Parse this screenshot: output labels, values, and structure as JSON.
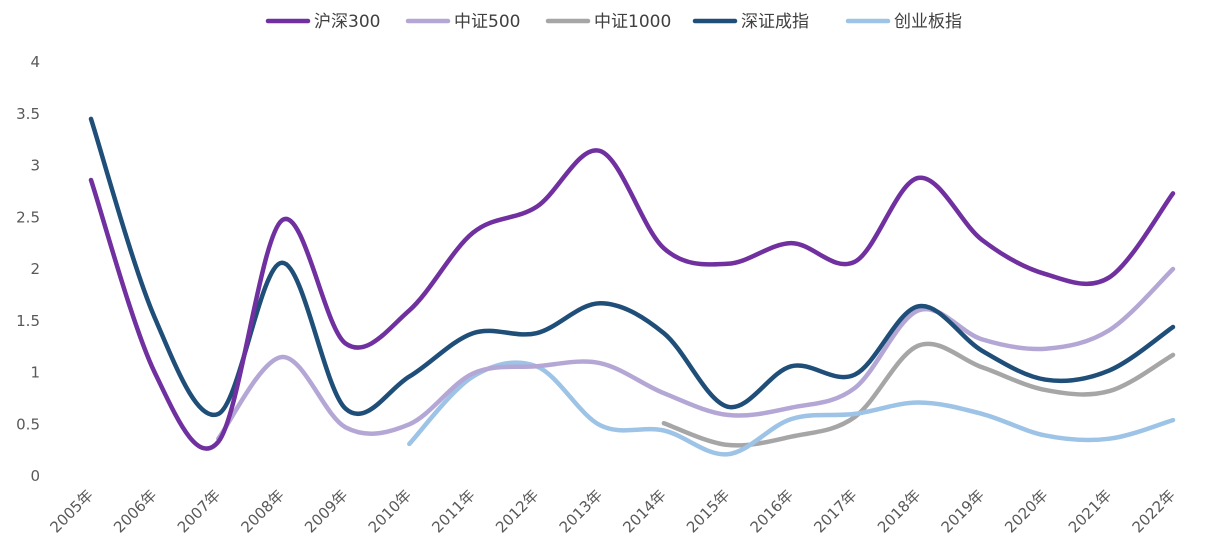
{
  "chart_data": {
    "type": "line",
    "title": "",
    "xlabel": "",
    "ylabel": "",
    "ylim": [
      0,
      4
    ],
    "yticks": [
      "0",
      "0.5",
      "1",
      "1.5",
      "2",
      "2.5",
      "3",
      "3.5",
      "4"
    ],
    "grid": false,
    "legend_position": "top",
    "categories": [
      "2005年",
      "2006年",
      "2007年",
      "2008年",
      "2009年",
      "2010年",
      "2011年",
      "2012年",
      "2013年",
      "2014年",
      "2015年",
      "2016年",
      "2017年",
      "2018年",
      "2019年",
      "2020年",
      "2021年",
      "2022年"
    ],
    "series": [
      {
        "name": "沪深300",
        "color": "#7030a0",
        "values": [
          2.86,
          1.0,
          0.33,
          2.47,
          1.28,
          1.6,
          2.35,
          2.6,
          3.14,
          2.2,
          2.05,
          2.25,
          2.07,
          2.88,
          2.28,
          1.95,
          1.92,
          2.73
        ]
      },
      {
        "name": "中证500",
        "color": "#b4a7d6",
        "values": [
          null,
          null,
          0.36,
          1.15,
          0.47,
          0.5,
          0.99,
          1.06,
          1.09,
          0.8,
          0.59,
          0.66,
          0.85,
          1.6,
          1.32,
          1.23,
          1.41,
          2.0
        ]
      },
      {
        "name": "中证1000",
        "color": "#a6a6a6",
        "values": [
          null,
          null,
          null,
          null,
          null,
          null,
          null,
          null,
          null,
          0.51,
          0.3,
          0.38,
          0.57,
          1.26,
          1.05,
          0.83,
          0.82,
          1.17
        ]
      },
      {
        "name": "深证成指",
        "color": "#1f4e79",
        "values": [
          3.45,
          1.53,
          0.6,
          2.06,
          0.65,
          0.96,
          1.38,
          1.38,
          1.67,
          1.38,
          0.67,
          1.06,
          0.98,
          1.64,
          1.21,
          0.93,
          1.02,
          1.44
        ]
      },
      {
        "name": "创业板指",
        "color": "#9dc3e6",
        "values": [
          null,
          null,
          null,
          null,
          null,
          0.31,
          0.96,
          1.06,
          0.49,
          0.44,
          0.21,
          0.55,
          0.6,
          0.71,
          0.6,
          0.39,
          0.36,
          0.54
        ]
      }
    ]
  }
}
